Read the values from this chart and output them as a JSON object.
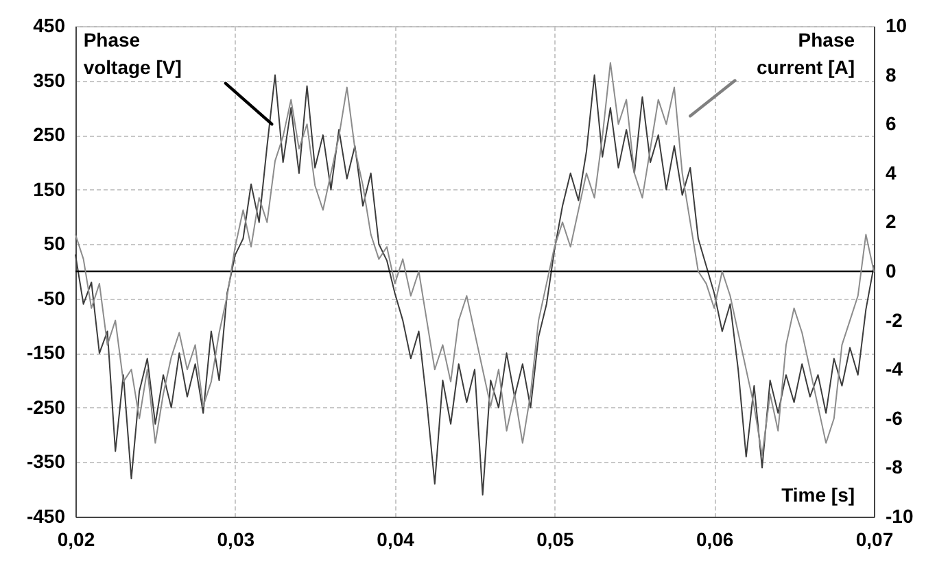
{
  "chart_data": {
    "type": "line",
    "xlabel": "Time [s]",
    "annotations": [
      "Phase voltage [V]",
      "Phase current [A]"
    ],
    "x": [
      0.02,
      0.0205,
      0.021,
      0.0215,
      0.022,
      0.0225,
      0.023,
      0.0235,
      0.024,
      0.0245,
      0.025,
      0.0255,
      0.026,
      0.0265,
      0.027,
      0.0275,
      0.028,
      0.0285,
      0.029,
      0.0295,
      0.03,
      0.0305,
      0.031,
      0.0315,
      0.032,
      0.0325,
      0.033,
      0.0335,
      0.034,
      0.0345,
      0.035,
      0.0355,
      0.036,
      0.0365,
      0.037,
      0.0375,
      0.038,
      0.0385,
      0.039,
      0.0395,
      0.04,
      0.0405,
      0.041,
      0.0415,
      0.042,
      0.0425,
      0.043,
      0.0435,
      0.044,
      0.0445,
      0.045,
      0.0455,
      0.046,
      0.0465,
      0.047,
      0.0475,
      0.048,
      0.0485,
      0.049,
      0.0495,
      0.05,
      0.0505,
      0.051,
      0.0515,
      0.052,
      0.0525,
      0.053,
      0.0535,
      0.054,
      0.0545,
      0.055,
      0.0555,
      0.056,
      0.0565,
      0.057,
      0.0575,
      0.058,
      0.0585,
      0.059,
      0.0595,
      0.06,
      0.0605,
      0.061,
      0.0615,
      0.062,
      0.0625,
      0.063,
      0.0635,
      0.064,
      0.0645,
      0.065,
      0.0655,
      0.066,
      0.0665,
      0.067,
      0.0675,
      0.068,
      0.0685,
      0.069,
      0.0695,
      0.07
    ],
    "series": [
      {
        "color": "#3c3c3c",
        "values": [
          30,
          -60,
          -20,
          -150,
          -110,
          -330,
          -190,
          -380,
          -220,
          -160,
          -280,
          -190,
          -250,
          -150,
          -230,
          -170,
          -260,
          -110,
          -200,
          -40,
          30,
          60,
          160,
          90,
          230,
          360,
          200,
          300,
          180,
          340,
          190,
          250,
          150,
          260,
          170,
          230,
          120,
          180,
          50,
          20,
          -40,
          -90,
          -160,
          -110,
          -240,
          -390,
          -200,
          -280,
          -170,
          -240,
          -180,
          -410,
          -200,
          -250,
          -150,
          -230,
          -170,
          -250,
          -120,
          -60,
          40,
          120,
          180,
          130,
          220,
          360,
          210,
          300,
          190,
          260,
          180,
          320,
          200,
          250,
          150,
          230,
          140,
          190,
          60,
          10,
          -40,
          -110,
          -60,
          -180,
          -340,
          -210,
          -360,
          -200,
          -260,
          -190,
          -240,
          -170,
          -230,
          -190,
          -260,
          -160,
          -210,
          -140,
          -190,
          -70,
          10
        ]
      },
      {
        "color": "#8c8c8c",
        "axis": "y2",
        "values": [
          1.5,
          0.5,
          -1.5,
          -0.5,
          -3,
          -2,
          -4.5,
          -4,
          -6,
          -4,
          -7,
          -5,
          -3.5,
          -2.5,
          -4,
          -3,
          -5.5,
          -4.5,
          -2.5,
          -1,
          1,
          2.5,
          1,
          3,
          2,
          4.5,
          5.5,
          7,
          5,
          6,
          3.5,
          2.5,
          4,
          5.5,
          7.5,
          5,
          3.5,
          1.5,
          0.5,
          1,
          -0.5,
          0.5,
          -1,
          0,
          -2,
          -4,
          -3,
          -4.5,
          -2,
          -1,
          -2.5,
          -4,
          -5.5,
          -4,
          -6.5,
          -5,
          -7,
          -5,
          -2,
          -0.5,
          1,
          2,
          1,
          2.5,
          4,
          3,
          5.5,
          8.5,
          6,
          7,
          4,
          3,
          5,
          7,
          6,
          7.5,
          4,
          2,
          0,
          -0.5,
          -1.5,
          0,
          -1,
          -2.5,
          -4,
          -5.5,
          -7.5,
          -5,
          -6.5,
          -3,
          -1.5,
          -2.5,
          -4,
          -5.5,
          -7,
          -6,
          -3,
          -2,
          -1,
          1.5,
          0
        ]
      }
    ],
    "xlim": [
      0.02,
      0.07
    ],
    "xticks": [
      {
        "value": 0.02,
        "label": "0,02"
      },
      {
        "value": 0.03,
        "label": "0,03"
      },
      {
        "value": 0.04,
        "label": "0,04"
      },
      {
        "value": 0.05,
        "label": "0,05"
      },
      {
        "value": 0.06,
        "label": "0,06"
      },
      {
        "value": 0.07,
        "label": "0,07"
      }
    ],
    "ylim": [
      -450,
      450
    ],
    "yticks": [
      -450,
      -350,
      -250,
      -150,
      -50,
      50,
      150,
      250,
      350,
      450
    ],
    "y2lim": [
      -10,
      10
    ],
    "y2ticks": [
      -10,
      -8,
      -6,
      -4,
      -2,
      0,
      2,
      4,
      6,
      8,
      10
    ],
    "ref_lines": [
      {
        "axis": "y",
        "value": 0,
        "color": "#000000"
      }
    ],
    "grid": true,
    "line_style": "solid"
  }
}
